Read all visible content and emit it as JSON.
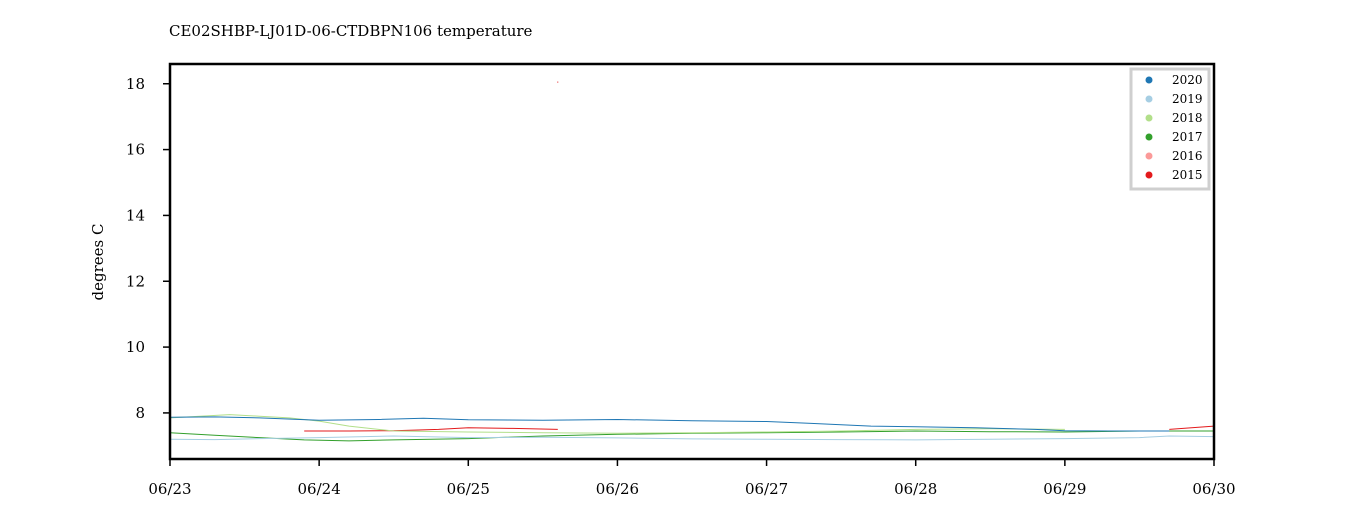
{
  "chart_data": {
    "type": "line",
    "title": "CE02SHBP-LJ01D-06-CTDBPN106 temperature",
    "xlabel": "",
    "ylabel": "degrees C",
    "x_ticks": [
      "06/23",
      "06/24",
      "06/25",
      "06/26",
      "06/27",
      "06/28",
      "06/29",
      "06/30"
    ],
    "x_range_days": [
      0,
      7
    ],
    "y_ticks": [
      8,
      10,
      12,
      14,
      16,
      18
    ],
    "ylim": [
      6.6,
      18.6
    ],
    "grid": false,
    "legend_position": "top-right",
    "series": [
      {
        "name": "2020",
        "color": "#1f77b4",
        "x": [
          0.0,
          0.3,
          0.6,
          1.0,
          1.4,
          1.7,
          2.0,
          2.5,
          3.0,
          3.5,
          4.0,
          4.3,
          4.7,
          5.0,
          5.4,
          5.8,
          6.0,
          6.3,
          6.7
        ],
        "y": [
          7.87,
          7.88,
          7.85,
          7.78,
          7.8,
          7.84,
          7.79,
          7.78,
          7.8,
          7.76,
          7.74,
          7.68,
          7.6,
          7.58,
          7.55,
          7.5,
          7.46,
          7.45,
          7.45
        ]
      },
      {
        "name": "2019",
        "color": "#a6cee3",
        "x": [
          0.0,
          0.3,
          0.6,
          1.0,
          1.5,
          2.0,
          2.5,
          3.0,
          3.5,
          4.0,
          4.5,
          5.0,
          5.5,
          6.0,
          6.5,
          6.7,
          7.0
        ],
        "y": [
          7.2,
          7.19,
          7.22,
          7.25,
          7.3,
          7.25,
          7.26,
          7.24,
          7.21,
          7.2,
          7.19,
          7.18,
          7.2,
          7.22,
          7.25,
          7.3,
          7.28
        ]
      },
      {
        "name": "2018",
        "color": "#b2df8a",
        "x": [
          0.0,
          0.2,
          0.4,
          0.6,
          0.8,
          1.0,
          1.2,
          1.5,
          2.0,
          2.5,
          3.0,
          3.5,
          4.0,
          4.5,
          5.0,
          5.5,
          6.0
        ],
        "y": [
          7.85,
          7.9,
          7.95,
          7.9,
          7.85,
          7.75,
          7.6,
          7.45,
          7.42,
          7.4,
          7.38,
          7.4,
          7.42,
          7.45,
          7.5,
          7.52,
          7.5
        ]
      },
      {
        "name": "2017",
        "color": "#33a02c",
        "x": [
          0.0,
          0.3,
          0.6,
          0.9,
          1.2,
          1.5,
          2.0,
          2.5,
          3.0,
          3.5,
          4.0,
          4.5,
          5.0,
          5.5,
          6.0,
          6.5,
          7.0
        ],
        "y": [
          7.4,
          7.32,
          7.25,
          7.18,
          7.15,
          7.18,
          7.22,
          7.3,
          7.35,
          7.38,
          7.4,
          7.42,
          7.45,
          7.43,
          7.42,
          7.45,
          7.45
        ]
      },
      {
        "name": "2016",
        "color": "#fb9a99",
        "x": [],
        "y": []
      },
      {
        "name": "2015",
        "color": "#e31a1c",
        "x": [
          0.9,
          1.2,
          1.5,
          1.8,
          2.0,
          2.3,
          2.6,
          2.6,
          6.7,
          6.85,
          7.0
        ],
        "y": [
          7.45,
          7.45,
          7.46,
          7.5,
          7.55,
          7.53,
          7.5,
          null,
          7.5,
          7.55,
          7.6
        ]
      }
    ],
    "annotations": [
      {
        "x": 2.6,
        "y": 18.05,
        "color": "#e31a1c"
      }
    ]
  }
}
